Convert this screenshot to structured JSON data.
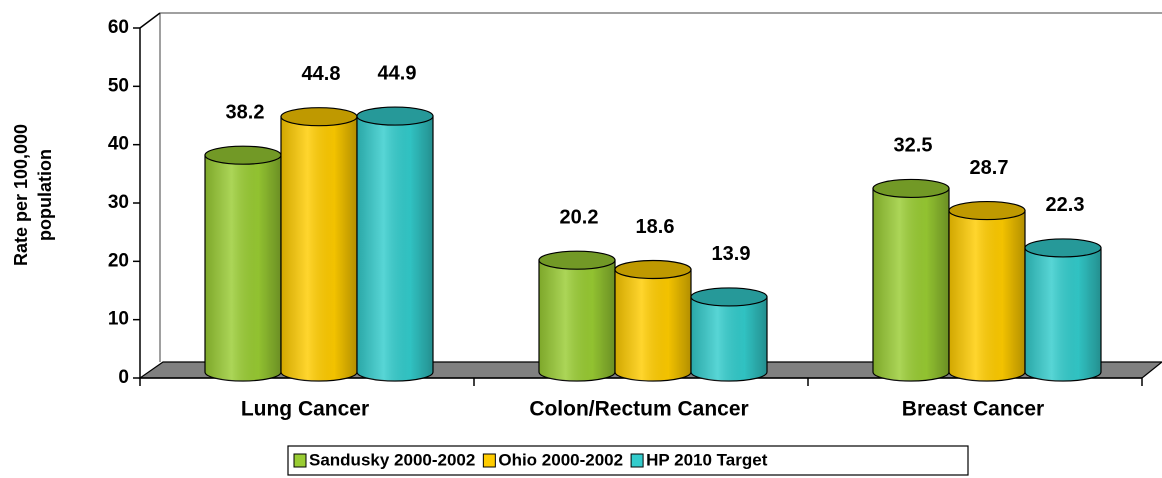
{
  "chart_data": {
    "type": "bar3d",
    "y_label": [
      "Rate per 100,000",
      "population"
    ],
    "categories": [
      "Lung Cancer",
      "Colon/Rectum Cancer",
      "Breast Cancer"
    ],
    "series": [
      {
        "name": "Sandusky 2000-2002",
        "color": "#99cc33",
        "values": [
          38.2,
          20.2,
          32.5
        ]
      },
      {
        "name": "Ohio 2000-2002",
        "color": "#ffcc00",
        "values": [
          44.8,
          18.6,
          28.7
        ]
      },
      {
        "name": "HP 2010 Target",
        "color": "#33cccc",
        "values": [
          44.9,
          13.9,
          22.3
        ]
      }
    ],
    "ylim": [
      0,
      60
    ],
    "yticks": [
      0,
      10,
      20,
      30,
      40,
      50,
      60
    ],
    "legend": "bottom"
  }
}
